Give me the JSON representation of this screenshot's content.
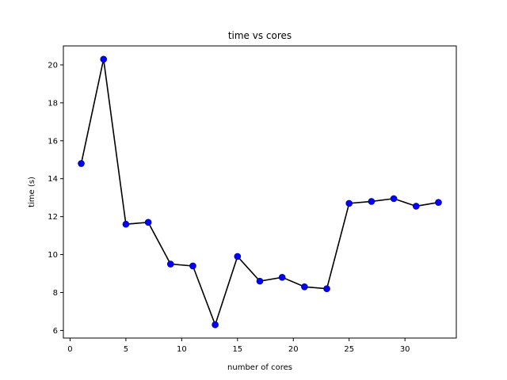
{
  "chart_data": {
    "type": "line",
    "title": "time vs cores",
    "xlabel": "number of cores",
    "ylabel": "time (s)",
    "xlim": [
      -0.6,
      34.6
    ],
    "ylim": [
      5.6,
      21.0
    ],
    "xticks": [
      0,
      5,
      10,
      15,
      20,
      25,
      30
    ],
    "yticks": [
      6,
      8,
      10,
      12,
      14,
      16,
      18,
      20
    ],
    "grid": false,
    "line_color": "#000000",
    "marker_color": "#0000ff",
    "x": [
      1,
      3,
      5,
      7,
      9,
      11,
      13,
      15,
      17,
      19,
      21,
      23,
      25,
      27,
      29,
      31,
      33
    ],
    "y": [
      14.8,
      20.3,
      11.6,
      11.7,
      9.5,
      9.4,
      6.3,
      9.9,
      8.6,
      8.8,
      8.3,
      8.2,
      12.7,
      12.8,
      12.95,
      12.55,
      12.75
    ]
  }
}
